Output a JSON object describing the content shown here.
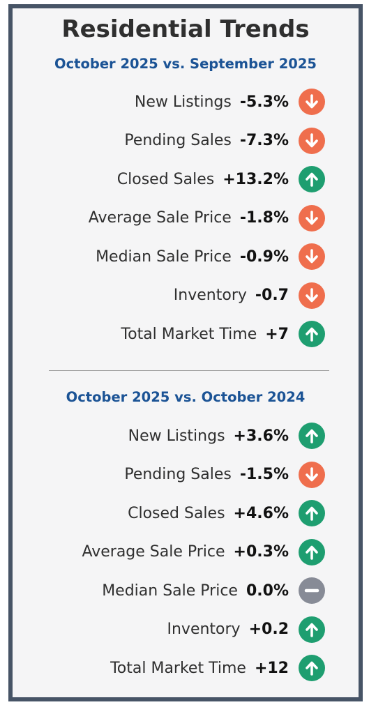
{
  "title": "Residential Trends",
  "colors": {
    "down": "#ef6e4d",
    "up": "#1e9e70",
    "neutral": "#878b96",
    "heading": "#1b5395"
  },
  "sections": [
    {
      "heading": "October 2025 vs. September 2025",
      "rows": [
        {
          "label": "New Listings",
          "value": "-5.3%",
          "trend": "down"
        },
        {
          "label": "Pending Sales",
          "value": "-7.3%",
          "trend": "down"
        },
        {
          "label": "Closed Sales",
          "value": "+13.2%",
          "trend": "up"
        },
        {
          "label": "Average Sale Price",
          "value": "-1.8%",
          "trend": "down"
        },
        {
          "label": "Median Sale Price",
          "value": "-0.9%",
          "trend": "down"
        },
        {
          "label": "Inventory",
          "value": "-0.7",
          "trend": "down"
        },
        {
          "label": "Total Market Time",
          "value": "+7",
          "trend": "up"
        }
      ]
    },
    {
      "heading": "October 2025 vs. October 2024",
      "rows": [
        {
          "label": "New Listings",
          "value": "+3.6%",
          "trend": "up"
        },
        {
          "label": "Pending Sales",
          "value": "-1.5%",
          "trend": "down"
        },
        {
          "label": "Closed Sales",
          "value": "+4.6%",
          "trend": "up"
        },
        {
          "label": "Average Sale Price",
          "value": "+0.3%",
          "trend": "up"
        },
        {
          "label": "Median Sale Price",
          "value": "0.0%",
          "trend": "neutral"
        },
        {
          "label": "Inventory",
          "value": "+0.2",
          "trend": "up"
        },
        {
          "label": "Total Market Time",
          "value": "+12",
          "trend": "up"
        }
      ]
    }
  ]
}
